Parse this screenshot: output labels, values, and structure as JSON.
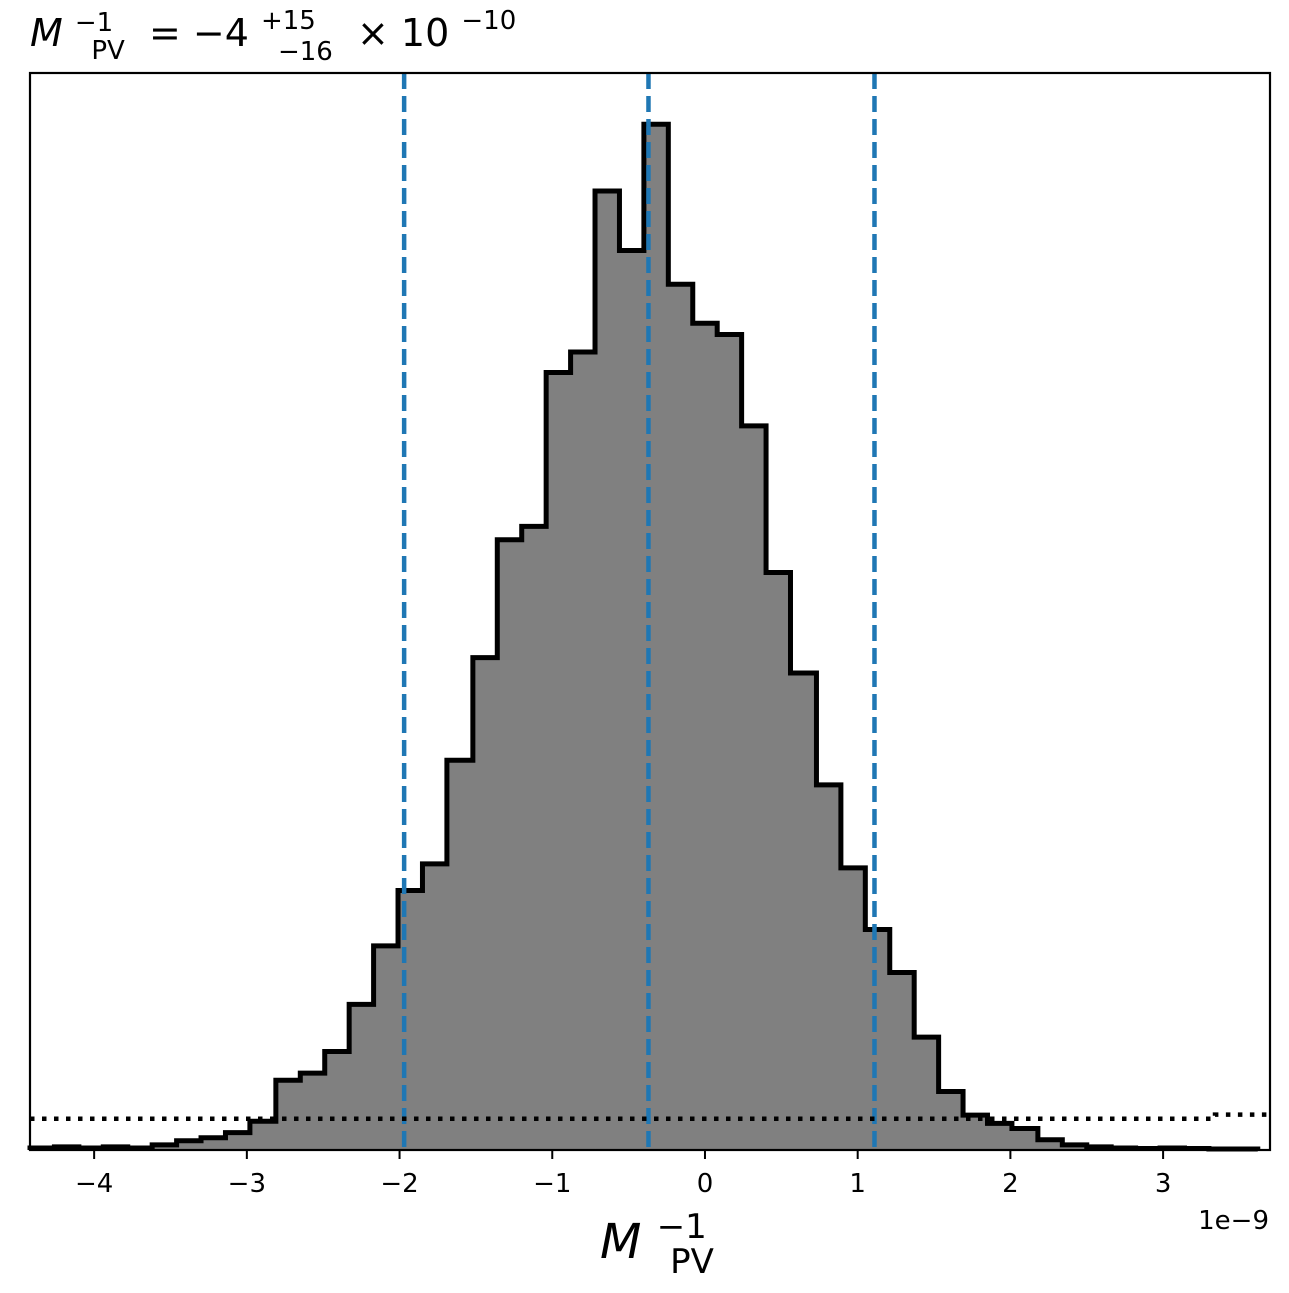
{
  "chart_data": {
    "type": "bar",
    "title": {
      "base": "M",
      "base_sup": "−1",
      "base_sub": "PV",
      "equals": " = −4",
      "err_plus": "+15",
      "err_minus": "−16",
      "times": " × 10",
      "exp": "−10"
    },
    "xlabel": {
      "base": "M",
      "sup": "−1",
      "sub": "PV"
    },
    "x_offset_label": "1e−9",
    "x_unit": 1e-09,
    "xlim": [
      -4.42,
      3.7
    ],
    "ylim": [
      0,
      1.05
    ],
    "xticks": [
      {
        "value": -4,
        "label": "−4"
      },
      {
        "value": -3,
        "label": "−3"
      },
      {
        "value": -2,
        "label": "−2"
      },
      {
        "value": -1,
        "label": "−1"
      },
      {
        "value": 0,
        "label": "0"
      },
      {
        "value": 1,
        "label": "1"
      },
      {
        "value": 2,
        "label": "2"
      },
      {
        "value": 3,
        "label": "3"
      }
    ],
    "yticks_shown": false,
    "grid": false,
    "histogram": {
      "bin_edges": [
        -4.42,
        -4.26,
        -4.1,
        -3.94,
        -3.78,
        -3.62,
        -3.46,
        -3.3,
        -3.14,
        -2.98,
        -2.81,
        -2.65,
        -2.49,
        -2.33,
        -2.17,
        -2.01,
        -1.85,
        -1.69,
        -1.52,
        -1.36,
        -1.2,
        -1.04,
        -0.88,
        -0.72,
        -0.56,
        -0.4,
        -0.24,
        -0.08,
        0.08,
        0.24,
        0.4,
        0.56,
        0.73,
        0.89,
        1.05,
        1.21,
        1.37,
        1.53,
        1.69,
        1.85,
        2.01,
        2.18,
        2.34,
        2.5,
        2.66,
        2.82,
        2.98,
        3.14,
        3.3,
        3.46,
        3.62
      ],
      "values": [
        0.002,
        0.003,
        0.002,
        0.003,
        0.002,
        0.005,
        0.009,
        0.012,
        0.017,
        0.028,
        0.068,
        0.075,
        0.096,
        0.142,
        0.199,
        0.253,
        0.279,
        0.38,
        0.48,
        0.595,
        0.608,
        0.758,
        0.778,
        0.935,
        0.877,
        1.0,
        0.844,
        0.806,
        0.795,
        0.706,
        0.563,
        0.465,
        0.356,
        0.275,
        0.215,
        0.173,
        0.11,
        0.057,
        0.034,
        0.026,
        0.021,
        0.01,
        0.005,
        0.003,
        0.002,
        0.0015,
        0.002,
        0.0015,
        0.001,
        0.001
      ],
      "fill": "#808080",
      "edge": "#000000"
    },
    "vlines": [
      {
        "x": -1.97,
        "style": "dashed",
        "color": "#1f77b4"
      },
      {
        "x": -0.37,
        "style": "dashed",
        "color": "#1f77b4"
      },
      {
        "x": 1.11,
        "style": "dashed",
        "color": "#1f77b4"
      }
    ],
    "prior_line": {
      "style": "dotted",
      "color": "#000000",
      "x": [
        -4.42,
        3.34,
        3.34,
        3.7
      ],
      "y": [
        0.0305,
        0.0305,
        0.0345,
        0.0345
      ]
    }
  }
}
